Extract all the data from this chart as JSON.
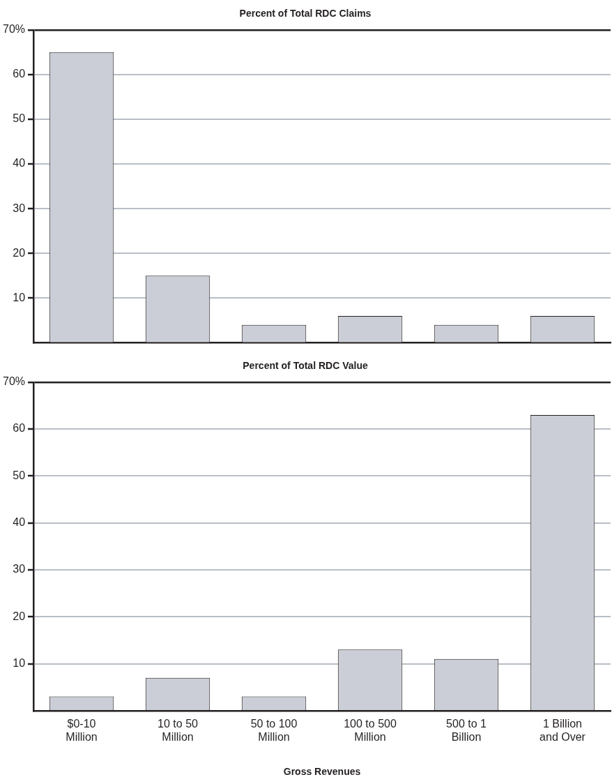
{
  "chart_data": [
    {
      "type": "bar",
      "title": "Percent of Total RDC Claims",
      "categories": [
        null,
        null,
        null,
        null,
        null,
        null
      ],
      "values": [
        65,
        15,
        4,
        6,
        4,
        6
      ],
      "color": "#cbced6",
      "ylim": [
        0,
        70
      ],
      "yticks": [
        {
          "value": 70,
          "label": "70%"
        },
        60,
        50,
        40,
        30,
        20,
        10
      ],
      "grid": "y",
      "legend": false,
      "tick_labels": "y"
    },
    {
      "type": "bar",
      "title": "Percent of Total RDC Value",
      "xlabel": "Gross Revenues",
      "categories": [
        "$0-10 Million",
        "10 to 50 Million",
        "50 to 100 Million",
        "100 to 500 Million",
        "500 to 1 Billion",
        "1 Billion and Over"
      ],
      "values": [
        3,
        7,
        3,
        13,
        11,
        63
      ],
      "color": "#cbced6",
      "ylim": [
        0,
        70
      ],
      "yticks": [
        {
          "value": 70,
          "label": "70%"
        },
        60,
        50,
        40,
        30,
        20,
        10
      ],
      "grid": "y",
      "legend": false
    }
  ]
}
